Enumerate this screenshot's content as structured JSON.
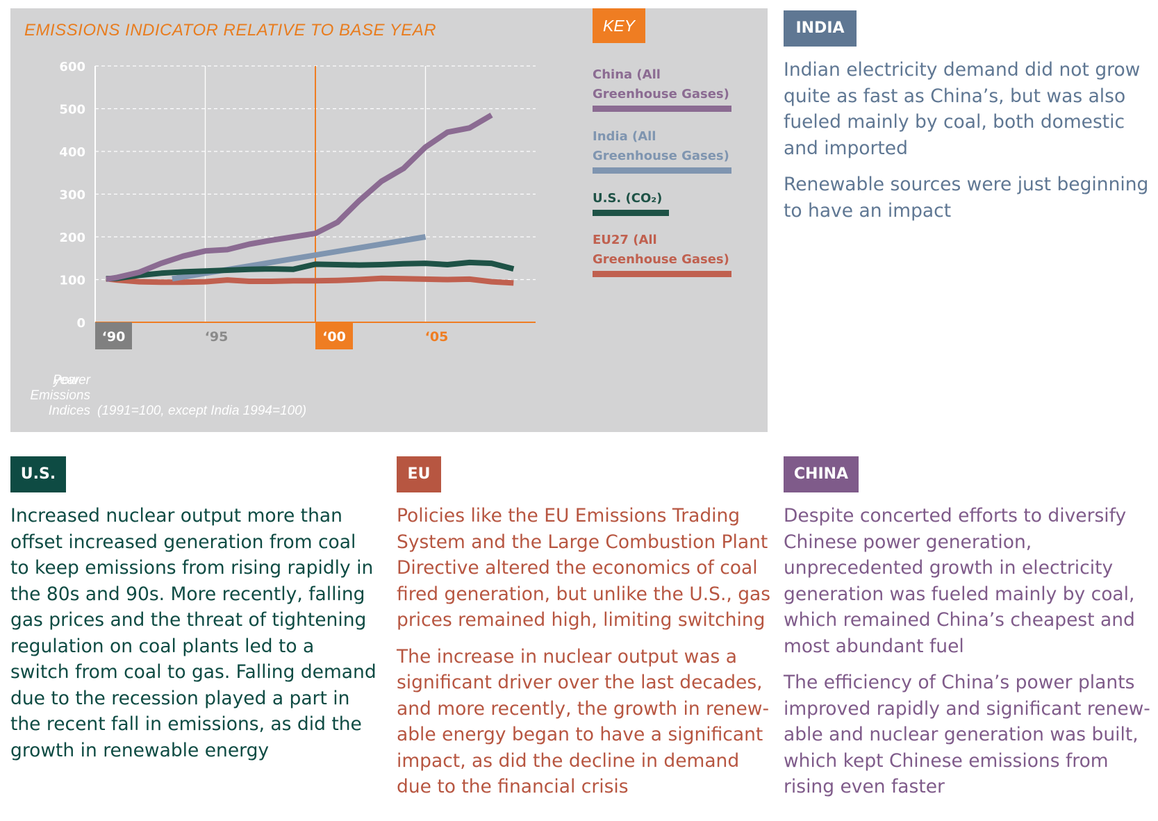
{
  "chart_data": {
    "type": "line",
    "title": "EMISSIONS INDICATOR RELATIVE TO BASE YEAR",
    "key_label": "KEY",
    "ylabel": "Power Emissions Indices",
    "xlabel": "year",
    "note": "(1991=100, except India 1994=100)",
    "ylim": [
      0,
      600
    ],
    "xlim": [
      1990,
      2010
    ],
    "y_ticks": [
      "0",
      "100",
      "200",
      "300",
      "400",
      "500",
      "600"
    ],
    "y_tick_values": [
      0,
      100,
      200,
      300,
      400,
      500,
      600
    ],
    "x_ticks": [
      {
        "label": "‘90",
        "value": 1990,
        "highlight": "#808080"
      },
      {
        "label": "‘95",
        "value": 1995,
        "highlight": ""
      },
      {
        "label": "‘00",
        "value": 2000,
        "highlight": "#ef7d22"
      },
      {
        "label": "‘05",
        "value": 2005,
        "highlight": ""
      }
    ],
    "reference_line_x": 2000,
    "grid": true,
    "legend_position": "right",
    "series": [
      {
        "name": "China (All Greenhouse Gases)",
        "color": "#8b6b92",
        "x": [
          1990.5,
          1991,
          1992,
          1993,
          1994,
          1995,
          1996,
          1997,
          1998,
          1999,
          2000,
          2001,
          2002,
          2003,
          2004,
          2005,
          2006,
          2007,
          2008
        ],
        "y": [
          101,
          105,
          117,
          138,
          155,
          167,
          170,
          183,
          192,
          200,
          208,
          234,
          285,
          330,
          360,
          410,
          445,
          455,
          485
        ]
      },
      {
        "name": "India (All Greenhouse Gases)",
        "color": "#7f95b0",
        "x": [
          1993.5,
          2005
        ],
        "y": [
          102,
          200
        ]
      },
      {
        "name": "U.S. (CO₂)",
        "color": "#1e5246",
        "x": [
          1990.5,
          1991,
          1992,
          1993,
          1994,
          1995,
          1996,
          1997,
          1998,
          1999,
          2000,
          2001,
          2002,
          2003,
          2004,
          2005,
          2006,
          2007,
          2008,
          2009
        ],
        "y": [
          102,
          103,
          110,
          115,
          118,
          120,
          122,
          124,
          125,
          124,
          136,
          135,
          134,
          135,
          137,
          138,
          135,
          140,
          138,
          125
        ]
      },
      {
        "name": "EU27 (All Greenhouse Gases)",
        "color": "#c0604f",
        "x": [
          1990.5,
          1991,
          1992,
          1993,
          1994,
          1995,
          1996,
          1997,
          1998,
          1999,
          2000,
          2001,
          2002,
          2003,
          2004,
          2005,
          2006,
          2007,
          2008,
          2009
        ],
        "y": [
          102,
          99,
          95,
          94,
          94,
          95,
          99,
          96,
          96,
          97,
          97,
          98,
          100,
          103,
          102,
          101,
          100,
          101,
          95,
          92
        ]
      }
    ]
  },
  "legend": [
    {
      "label": "China (All Greenhouse Gases)",
      "color": "#8b6b92"
    },
    {
      "label": "India (All Greenhouse Gases)",
      "color": "#7f95b0"
    },
    {
      "label": "U.S. (CO₂)",
      "color": "#1e5246"
    },
    {
      "label": "EU27 (All Greenhouse Gases)",
      "color": "#c0604f"
    }
  ],
  "panels": {
    "india": {
      "tag": "INDIA",
      "color": "#5f7793",
      "text_color": "#5f7793",
      "paragraphs": [
        "Indian electricity demand did not grow quite as fast as China’s, but was also fueled mainly by coal, both domestic and imported",
        "Renewable sources were just beginning to have an impact"
      ]
    },
    "us": {
      "tag": "U.S.",
      "color": "#0e4b43",
      "text_color": "#0e4b43",
      "paragraphs": [
        "Increased nuclear output more than offset increased generation from coal to keep emissions from rising rapidly in the 80s and 90s. More recently, falling gas prices and the threat of tightening regulation on coal plants led to a switch from coal to gas. Falling demand due to the recession played a part in the recent fall in emissions, as did the growth in renewable energy"
      ]
    },
    "eu": {
      "tag": "EU",
      "color": "#b75641",
      "text_color": "#b75641",
      "paragraphs": [
        "Policies like the EU Emissions Trading System and the Large Combustion Plant Directive altered the economics of coal fired generation, but unlike the U.S., gas prices remained high, limiting switching",
        "The increase in nuclear output was a significant driver over the last decades, and more recently, the growth in renew­able energy began to have a significant impact, as did the decline in demand due to the financial crisis"
      ]
    },
    "china": {
      "tag": "CHINA",
      "color": "#7f5b8a",
      "text_color": "#7f5b8a",
      "paragraphs": [
        "Despite concerted efforts to diversify Chinese power generation, unprecedented growth in electricity generation was fueled mainly by coal, which remained China’s cheapest and most abundant fuel",
        "The efficiency of China’s power plants improved rapidly and significant renew­able and nuclear generation was built, which kept Chinese emissions from rising even faster"
      ]
    }
  }
}
